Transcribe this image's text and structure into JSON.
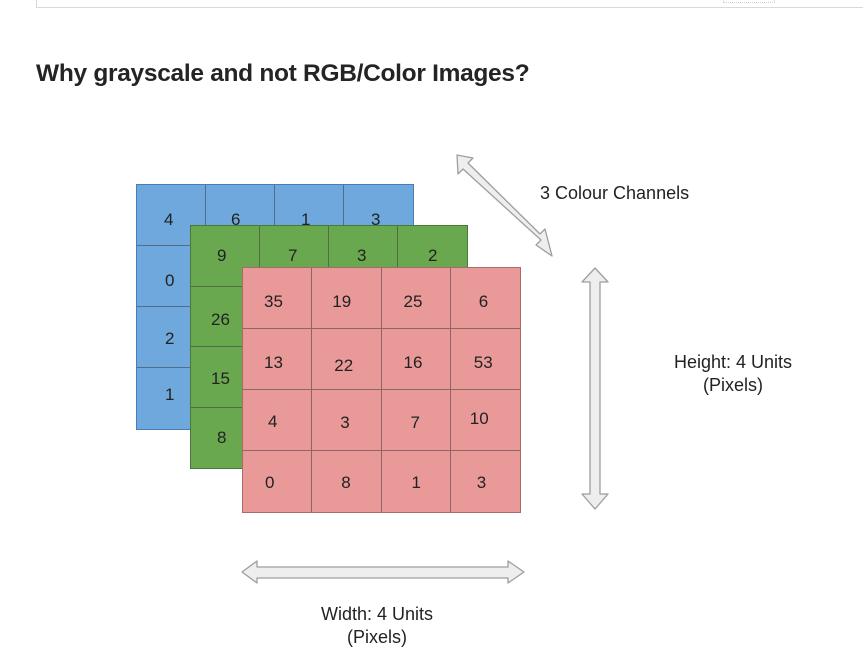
{
  "article": {
    "heading": "Why grayscale and not RGB/Color Images?"
  },
  "figure": {
    "channels_label": "3 Colour Channels",
    "height_label_line1": "Height: 4 Units",
    "height_label_line2": "(Pixels)",
    "width_label_line1": "Width: 4 Units",
    "width_label_line2": "(Pixels)",
    "colors": {
      "blue_channel": "#6fa8dc",
      "green_channel": "#6aa84f",
      "red_channel": "#ea9999",
      "arrow_fill": "#eeeeee",
      "arrow_stroke": "#9e9e9e"
    },
    "blue_channel": {
      "first_row": [
        "4",
        "6",
        "1",
        "3"
      ],
      "first_column": [
        "4",
        "0",
        "2",
        "1"
      ]
    },
    "green_channel": {
      "first_row": [
        "9",
        "7",
        "3",
        "2"
      ],
      "first_column": [
        "9",
        "26",
        "15",
        "8"
      ]
    },
    "red_channel": {
      "rows": [
        [
          "35",
          "19",
          "25",
          "6"
        ],
        [
          "13",
          "22",
          "16",
          "53"
        ],
        [
          "4",
          "3",
          "7",
          "10"
        ],
        [
          "0",
          "8",
          "1",
          "3"
        ]
      ]
    }
  }
}
